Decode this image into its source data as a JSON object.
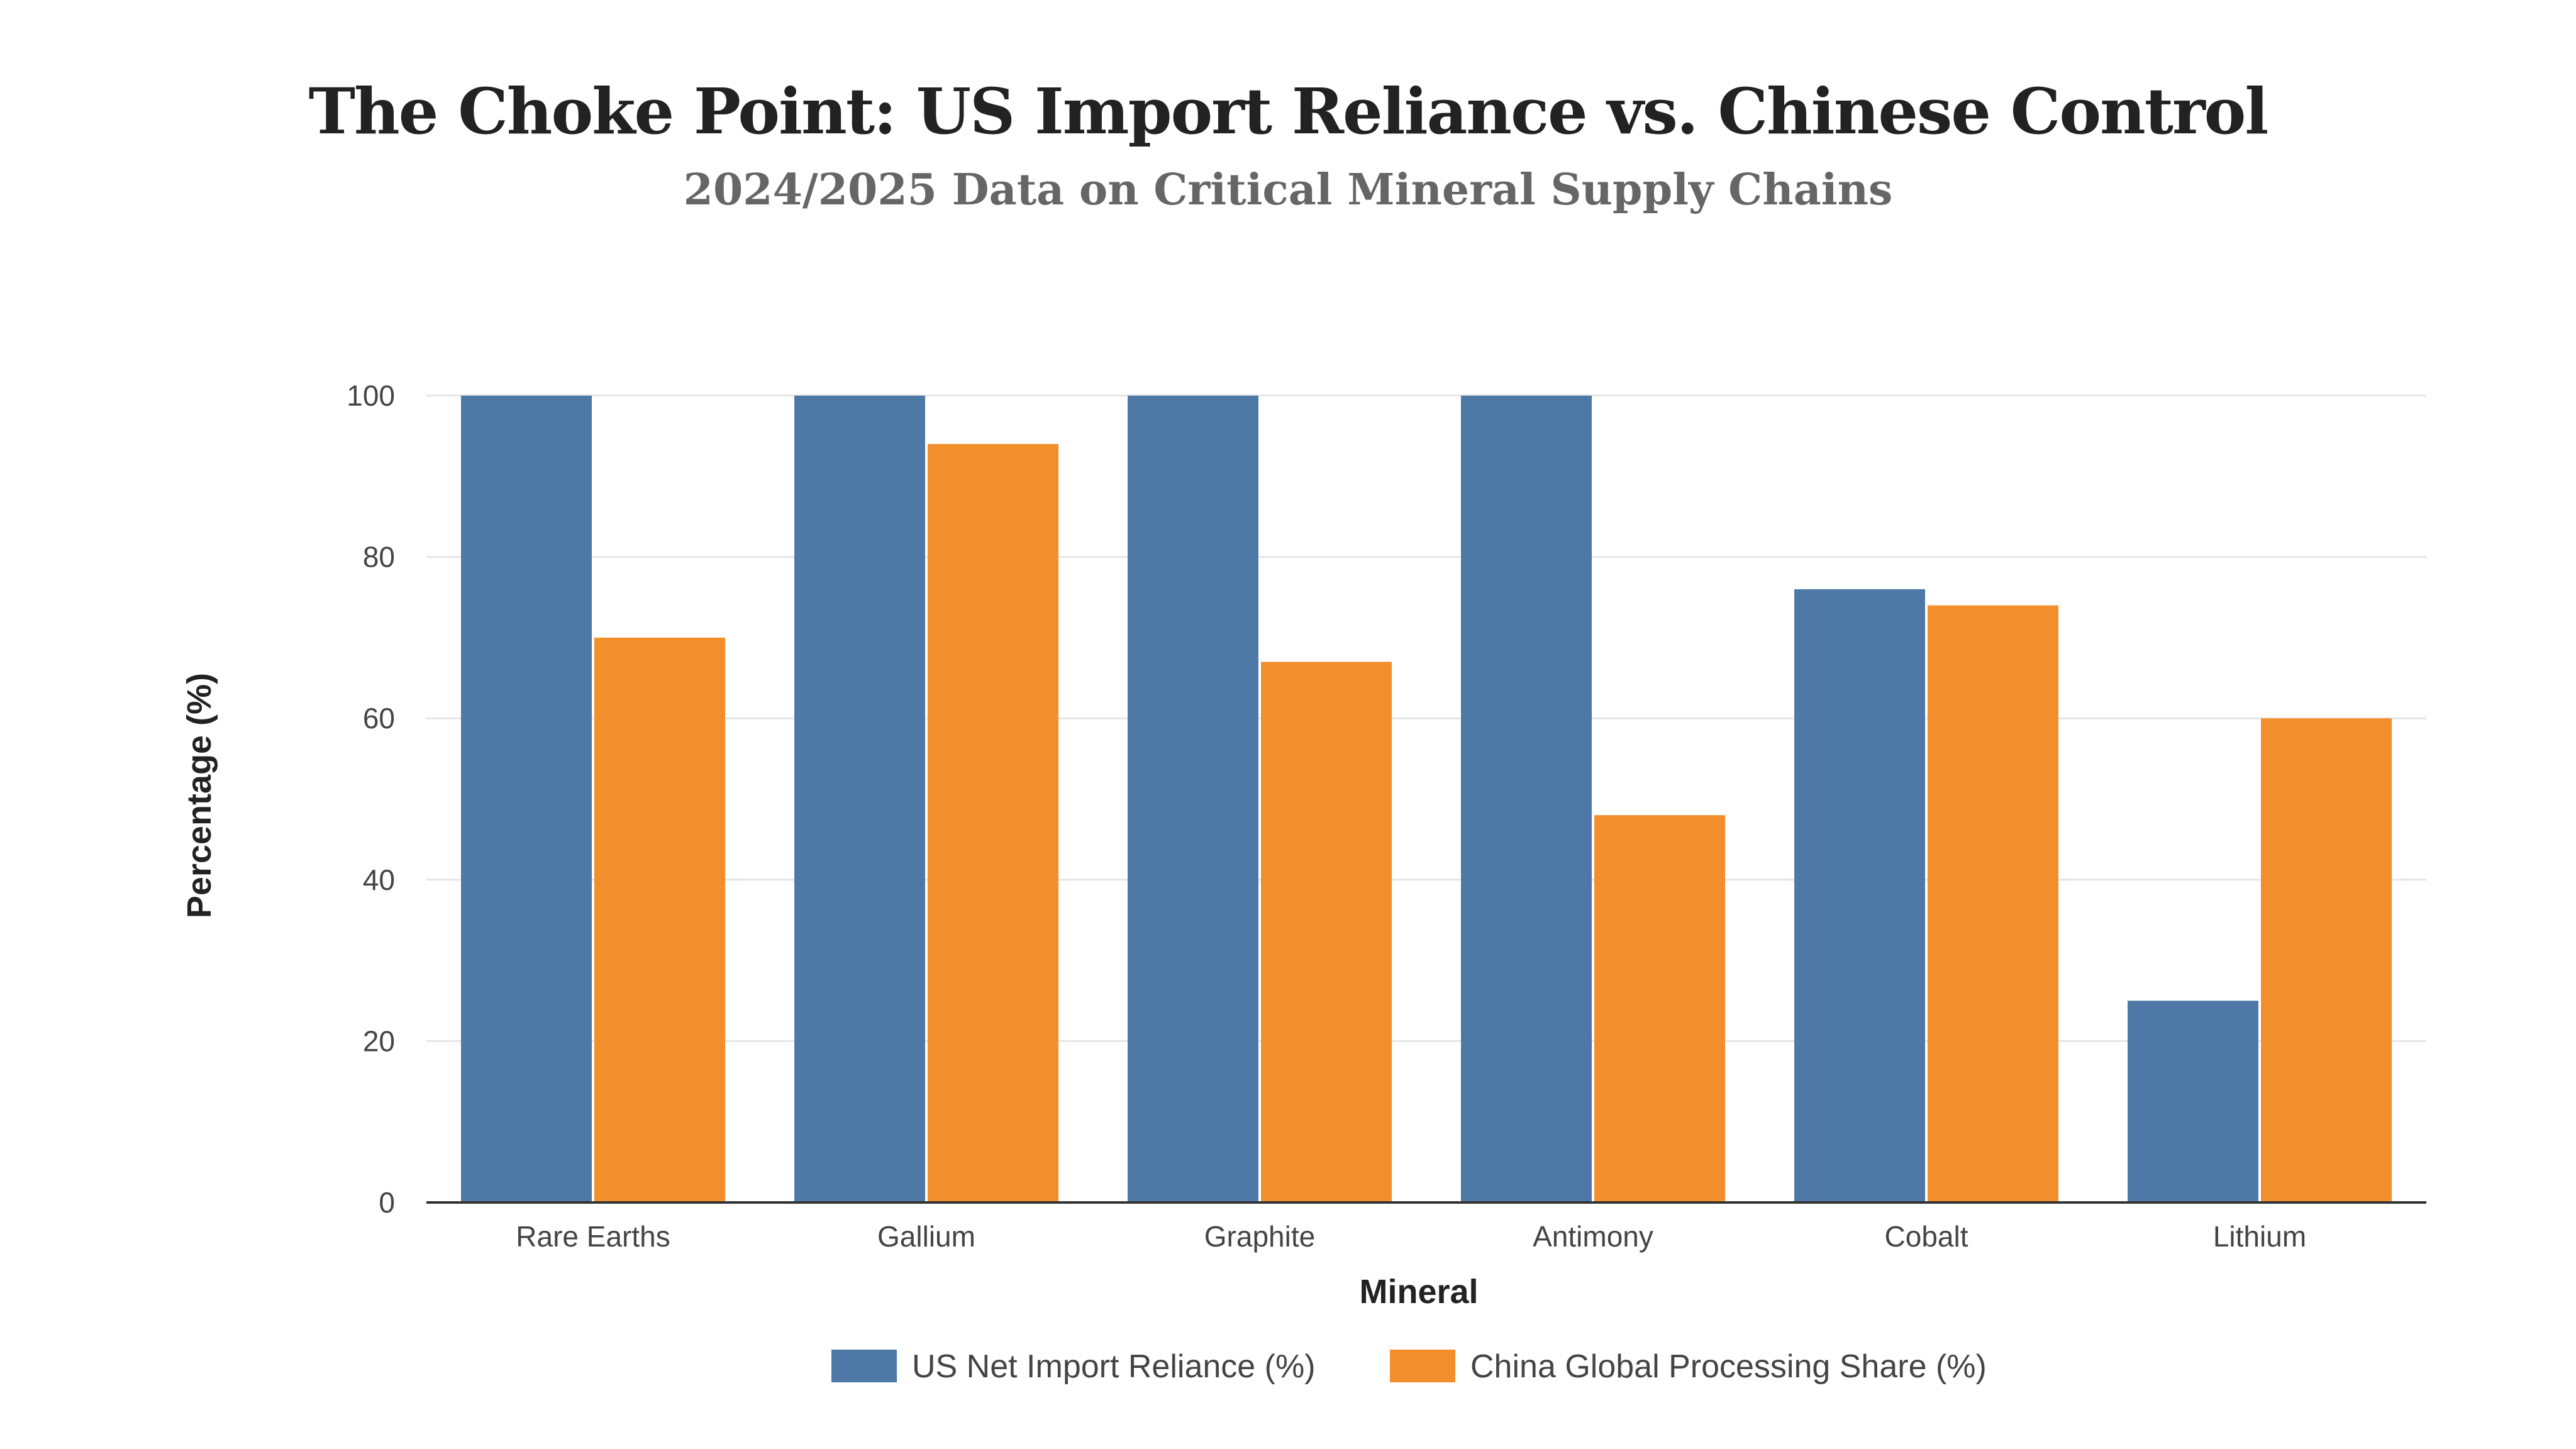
{
  "chart_data": {
    "type": "bar",
    "title": "The Choke Point: US Import Reliance vs. Chinese Control",
    "subtitle": "2024/2025 Data on Critical Mineral Supply Chains",
    "xlabel": "Mineral",
    "ylabel": "Percentage (%)",
    "ylim": [
      0,
      100
    ],
    "yticks": [
      0,
      20,
      40,
      60,
      80,
      100
    ],
    "grid": true,
    "legend_position": "bottom-center",
    "categories": [
      "Rare Earths",
      "Gallium",
      "Graphite",
      "Antimony",
      "Cobalt",
      "Lithium"
    ],
    "series": [
      {
        "name": "US Net Import Reliance (%)",
        "color": "#4e79a7",
        "values": [
          100,
          100,
          100,
          100,
          76,
          25
        ]
      },
      {
        "name": "China Global Processing Share (%)",
        "color": "#f28e2b",
        "values": [
          70,
          94,
          67,
          48,
          74,
          60
        ]
      }
    ]
  }
}
